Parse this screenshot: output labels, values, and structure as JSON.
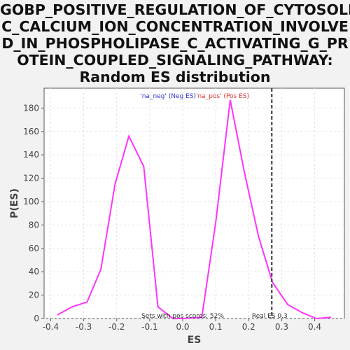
{
  "chart_data": {
    "type": "line",
    "title_lines": [
      "GOBP_POSITIVE_REGULATION_OF_CYTOSOLI",
      "C_CALCIUM_ION_CONCENTRATION_INVOLVE",
      "D_IN_PHOSPHOLIPASE_C_ACTIVATING_G_PR",
      "OTEIN_COUPLED_SIGNALING_PATHWAY:",
      "Random ES distribution"
    ],
    "xlabel": "ES",
    "ylabel": "P(ES)",
    "xlim": [
      -0.42,
      0.49
    ],
    "ylim": [
      0,
      197
    ],
    "xticks": [
      "-0.4",
      "-0.3",
      "-0.2",
      "-0.1",
      "0.0",
      "0.1",
      "0.2",
      "0.3",
      "0.4"
    ],
    "yticks": [
      "0",
      "20",
      "40",
      "60",
      "80",
      "100",
      "120",
      "140",
      "160",
      "180"
    ],
    "grid": true,
    "series": [
      {
        "color": "#ff33ff",
        "x": [
          -0.38,
          -0.335,
          -0.29,
          -0.248,
          -0.205,
          -0.163,
          -0.118,
          -0.075,
          -0.03,
          0.0,
          0.058,
          0.1,
          0.144,
          0.187,
          0.23,
          0.272,
          0.318,
          0.362,
          0.405,
          0.45
        ],
        "y": [
          3,
          10,
          14,
          42,
          115,
          156,
          130,
          10,
          0,
          0,
          1,
          82,
          187,
          125,
          70,
          31,
          12,
          5,
          0,
          1
        ]
      }
    ],
    "real_es": 0.27,
    "legend": {
      "neg_label": "'na_neg' (Neg ES)",
      "pos_label": "'na_pos' (Pos ES)",
      "neg_color": "#3333cc",
      "pos_color": "#dd3333"
    },
    "annotations": {
      "pos_scores": "Sets with pos scores: 52%",
      "real_es_label": "Real ES 0.3"
    }
  }
}
